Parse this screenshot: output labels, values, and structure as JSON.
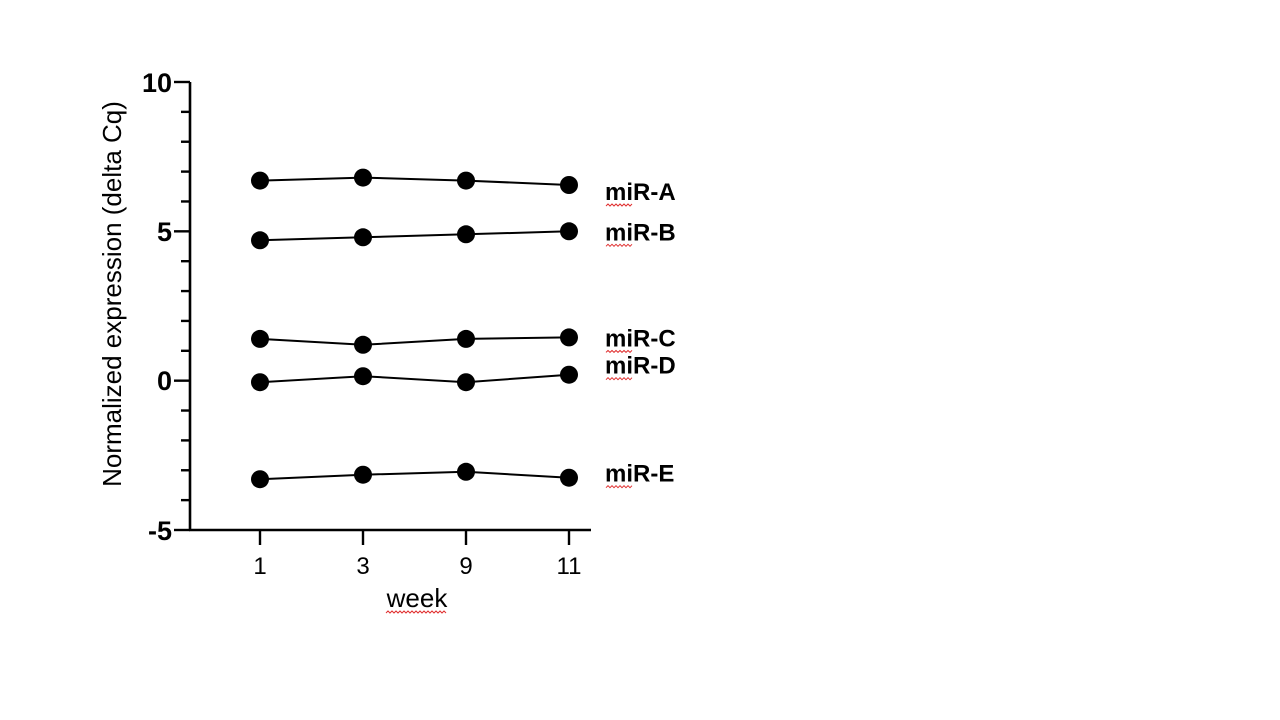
{
  "chart_data": {
    "type": "line",
    "categories": [
      "1",
      "3",
      "9",
      "11"
    ],
    "xlabel": "week",
    "ylabel": "Normalized expression (delta Cq)",
    "ylim": [
      -5,
      10
    ],
    "yticks": [
      "10",
      "5",
      "0",
      "-5"
    ],
    "grid": false,
    "legend": "inline-right",
    "series": [
      {
        "name": "miR-A",
        "values": [
          6.7,
          6.8,
          6.7,
          6.55
        ]
      },
      {
        "name": "miR-B",
        "values": [
          4.7,
          4.8,
          4.9,
          5.0
        ]
      },
      {
        "name": "miR-C",
        "values": [
          1.4,
          1.2,
          1.4,
          1.45
        ]
      },
      {
        "name": "miR-D",
        "values": [
          -0.05,
          0.15,
          -0.05,
          0.2
        ]
      },
      {
        "name": "miR-E",
        "values": [
          -3.3,
          -3.15,
          -3.05,
          -3.25
        ]
      }
    ],
    "colors": {
      "line": "#000000",
      "marker": "#000000",
      "spellcheck_underline": "#e03030"
    }
  }
}
